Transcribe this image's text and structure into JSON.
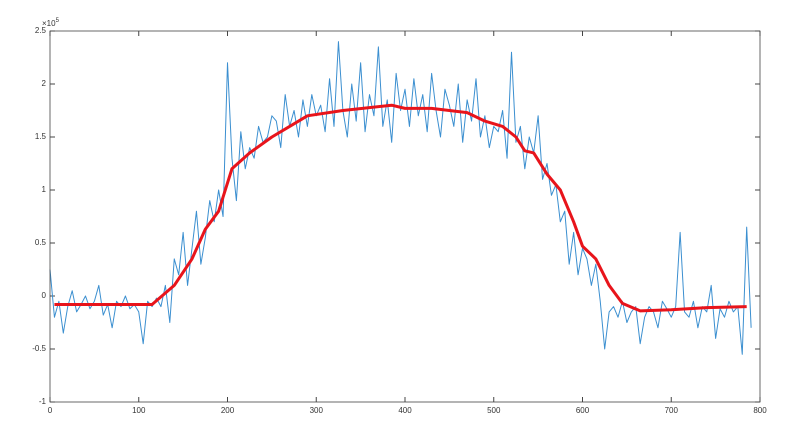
{
  "chart_data": {
    "type": "line",
    "y_multiplier": "×10",
    "y_exponent": "5",
    "xlim": [
      0,
      800
    ],
    "xticks": [
      0,
      100,
      200,
      300,
      400,
      500,
      600,
      700,
      800
    ],
    "ylim": [
      -1,
      2.5
    ],
    "yticks": [
      -1,
      -0.5,
      0,
      0.5,
      1,
      1.5,
      2,
      2.5
    ],
    "grid": false,
    "series": [
      {
        "color": "#3b8fd0",
        "width": 1,
        "x": [
          0,
          5,
          10,
          15,
          20,
          25,
          30,
          35,
          40,
          45,
          50,
          55,
          60,
          65,
          70,
          75,
          80,
          85,
          90,
          95,
          100,
          105,
          110,
          115,
          120,
          125,
          130,
          135,
          140,
          145,
          150,
          155,
          160,
          165,
          170,
          175,
          180,
          185,
          190,
          195,
          200,
          205,
          210,
          215,
          220,
          225,
          230,
          235,
          240,
          245,
          250,
          255,
          260,
          265,
          270,
          275,
          280,
          285,
          290,
          295,
          300,
          305,
          310,
          315,
          320,
          325,
          330,
          335,
          340,
          345,
          350,
          355,
          360,
          365,
          370,
          375,
          380,
          385,
          390,
          395,
          400,
          405,
          410,
          415,
          420,
          425,
          430,
          435,
          440,
          445,
          450,
          455,
          460,
          465,
          470,
          475,
          480,
          485,
          490,
          495,
          500,
          505,
          510,
          515,
          520,
          525,
          530,
          535,
          540,
          545,
          550,
          555,
          560,
          565,
          570,
          575,
          580,
          585,
          590,
          595,
          600,
          605,
          610,
          615,
          620,
          625,
          630,
          635,
          640,
          645,
          650,
          655,
          660,
          665,
          670,
          675,
          680,
          685,
          690,
          695,
          700,
          705,
          710,
          715,
          720,
          725,
          730,
          735,
          740,
          745,
          750,
          755,
          760,
          765,
          770,
          775,
          780,
          785,
          790
        ],
        "values": [
          0.25,
          -0.2,
          -0.05,
          -0.35,
          -0.1,
          0.05,
          -0.15,
          -0.08,
          0.0,
          -0.12,
          -0.05,
          0.1,
          -0.18,
          -0.08,
          -0.3,
          -0.05,
          -0.1,
          0.0,
          -0.12,
          -0.08,
          -0.15,
          -0.45,
          -0.05,
          -0.1,
          -0.02,
          -0.1,
          0.1,
          -0.25,
          0.35,
          0.2,
          0.6,
          0.1,
          0.45,
          0.8,
          0.3,
          0.55,
          0.9,
          0.7,
          1.0,
          0.75,
          2.2,
          1.3,
          0.9,
          1.55,
          1.2,
          1.4,
          1.3,
          1.6,
          1.45,
          1.5,
          1.7,
          1.65,
          1.4,
          1.9,
          1.6,
          1.75,
          1.5,
          1.85,
          1.6,
          1.9,
          1.7,
          1.8,
          1.55,
          2.05,
          1.6,
          2.4,
          1.75,
          1.5,
          2.0,
          1.65,
          2.2,
          1.55,
          1.9,
          1.7,
          2.35,
          1.6,
          1.85,
          1.45,
          2.1,
          1.75,
          1.95,
          1.6,
          2.05,
          1.7,
          1.9,
          1.55,
          2.1,
          1.75,
          1.5,
          1.95,
          1.8,
          1.6,
          2.0,
          1.45,
          1.85,
          1.65,
          2.05,
          1.5,
          1.7,
          1.4,
          1.6,
          1.55,
          1.75,
          1.3,
          2.3,
          1.45,
          1.6,
          1.2,
          1.5,
          1.35,
          1.7,
          1.1,
          1.25,
          0.95,
          1.05,
          0.7,
          0.8,
          0.3,
          0.6,
          0.2,
          0.45,
          0.35,
          0.1,
          0.3,
          -0.05,
          -0.5,
          -0.15,
          -0.1,
          -0.2,
          -0.05,
          -0.25,
          -0.15,
          -0.1,
          -0.45,
          -0.2,
          -0.1,
          -0.15,
          -0.3,
          -0.05,
          -0.12,
          -0.2,
          -0.1,
          0.6,
          -0.15,
          -0.2,
          -0.05,
          -0.3,
          -0.1,
          -0.15,
          0.1,
          -0.4,
          -0.12,
          -0.2,
          -0.05,
          -0.15,
          -0.1,
          -0.55,
          0.65,
          -0.3
        ]
      },
      {
        "color": "#e8141b",
        "width": 3,
        "x": [
          5,
          115,
          140,
          160,
          175,
          190,
          205,
          225,
          250,
          270,
          290,
          330,
          385,
          400,
          430,
          470,
          490,
          510,
          525,
          535,
          545,
          560,
          575,
          590,
          600,
          615,
          630,
          645,
          665,
          700,
          740,
          785
        ],
        "values": [
          -0.08,
          -0.08,
          0.1,
          0.35,
          0.63,
          0.8,
          1.2,
          1.35,
          1.5,
          1.6,
          1.7,
          1.75,
          1.8,
          1.77,
          1.77,
          1.73,
          1.65,
          1.6,
          1.5,
          1.37,
          1.35,
          1.15,
          1.0,
          0.7,
          0.47,
          0.35,
          0.1,
          -0.07,
          -0.14,
          -0.13,
          -0.11,
          -0.1
        ]
      }
    ]
  }
}
